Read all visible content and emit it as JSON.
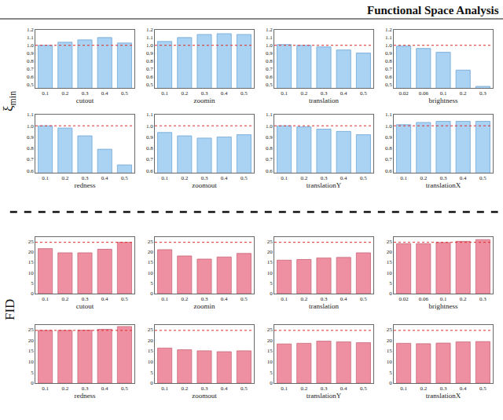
{
  "title": "Functional Space Analysis",
  "groups": [
    {
      "label": "ξ",
      "label_sub": "min"
    },
    {
      "label": "FID"
    }
  ],
  "chart_data": [
    {
      "type": "bar",
      "x_label": "cutout",
      "categories": [
        "0.1",
        "0.2",
        "0.3",
        "0.4",
        "0.5"
      ],
      "values": [
        1.0,
        1.04,
        1.07,
        1.1,
        1.03
      ],
      "color": "#a9d2f3",
      "ylim": [
        0.45,
        1.2
      ],
      "yticks": [
        0.5,
        0.6,
        0.7,
        0.8,
        0.9,
        {
          "value": 1,
          "label": "1.0"
        },
        1.1,
        1.2
      ],
      "reference_line": 1.0,
      "grid": false
    },
    {
      "type": "bar",
      "x_label": "zoomin",
      "categories": [
        "0.1",
        "0.2",
        "0.3",
        "0.4",
        "0.5"
      ],
      "values": [
        1.05,
        1.1,
        1.14,
        1.15,
        1.14
      ],
      "color": "#a9d2f3",
      "ylim": [
        0.45,
        1.2
      ],
      "yticks": [
        0.5,
        0.6,
        0.7,
        0.8,
        0.9,
        {
          "value": 1,
          "label": "1.0"
        },
        1.1,
        1.2
      ],
      "reference_line": 1.0,
      "grid": false
    },
    {
      "type": "bar",
      "x_label": "translation",
      "categories": [
        "0.1",
        "0.2",
        "0.3",
        "0.4",
        "0.5"
      ],
      "values": [
        1.01,
        1.0,
        0.98,
        0.94,
        0.9
      ],
      "color": "#a9d2f3",
      "ylim": [
        0.45,
        1.2
      ],
      "yticks": [
        0.5,
        0.6,
        0.7,
        0.8,
        0.9,
        {
          "value": 1,
          "label": "1.0"
        },
        1.1,
        1.2
      ],
      "reference_line": 1.0,
      "grid": false
    },
    {
      "type": "bar",
      "x_label": "brightness",
      "categories": [
        "0.02",
        "0.06",
        "0.1",
        "0.2",
        "0.3"
      ],
      "values": [
        0.99,
        0.96,
        0.91,
        0.68,
        0.47
      ],
      "color": "#a9d2f3",
      "ylim": [
        0.45,
        1.2
      ],
      "yticks": [
        0.5,
        0.6,
        0.7,
        0.8,
        0.9,
        {
          "value": 1,
          "label": "1.0"
        },
        1.1,
        1.2
      ],
      "reference_line": 1.0,
      "grid": false
    },
    {
      "type": "bar",
      "x_label": "redness",
      "categories": [
        "0.1",
        "0.2",
        "0.3",
        "0.4",
        "0.5"
      ],
      "values": [
        1.0,
        0.98,
        0.91,
        0.79,
        0.65
      ],
      "color": "#a9d2f3",
      "ylim": [
        0.58,
        1.1
      ],
      "yticks": [
        0.6,
        0.7,
        0.8,
        0.9,
        {
          "value": 1,
          "label": "1.0"
        },
        1.1
      ],
      "reference_line": 1.0,
      "grid": false
    },
    {
      "type": "bar",
      "x_label": "zoomout",
      "categories": [
        "0.1",
        "0.2",
        "0.3",
        "0.4",
        "0.5"
      ],
      "values": [
        0.94,
        0.91,
        0.89,
        0.9,
        0.92
      ],
      "color": "#a9d2f3",
      "ylim": [
        0.58,
        1.1
      ],
      "yticks": [
        0.6,
        0.7,
        0.8,
        0.9,
        {
          "value": 1,
          "label": "1.0"
        },
        1.1
      ],
      "reference_line": 1.0,
      "grid": false
    },
    {
      "type": "bar",
      "x_label": "translationY",
      "categories": [
        "0.1",
        "0.2",
        "0.3",
        "0.4",
        "0.5"
      ],
      "values": [
        1.0,
        0.99,
        0.97,
        0.95,
        0.92
      ],
      "color": "#a9d2f3",
      "ylim": [
        0.58,
        1.1
      ],
      "yticks": [
        0.6,
        0.7,
        0.8,
        0.9,
        {
          "value": 1,
          "label": "1.0"
        },
        1.1
      ],
      "reference_line": 1.0,
      "grid": false
    },
    {
      "type": "bar",
      "x_label": "translationX",
      "categories": [
        "0.1",
        "0.2",
        "0.3",
        "0.4",
        "0.5"
      ],
      "values": [
        1.01,
        1.03,
        1.04,
        1.04,
        1.04
      ],
      "color": "#a9d2f3",
      "ylim": [
        0.58,
        1.1
      ],
      "yticks": [
        0.6,
        0.7,
        0.8,
        0.9,
        {
          "value": 1,
          "label": "1.0"
        },
        1.1
      ],
      "reference_line": 1.0,
      "grid": false
    },
    {
      "type": "bar",
      "x_label": "cutout",
      "categories": [
        "0.1",
        "0.2",
        "0.3",
        "0.4",
        "0.5"
      ],
      "values": [
        21.5,
        19.5,
        19.5,
        21.2,
        24.5
      ],
      "color": "#ee90a1",
      "ylim": [
        0,
        27
      ],
      "yticks": [
        0,
        5,
        10,
        15,
        20,
        25
      ],
      "reference_line": 24.5,
      "grid": false
    },
    {
      "type": "bar",
      "x_label": "zoomin",
      "categories": [
        "0.1",
        "0.2",
        "0.3",
        "0.4",
        "0.5"
      ],
      "values": [
        21.0,
        18.0,
        16.5,
        17.5,
        19.2
      ],
      "color": "#ee90a1",
      "ylim": [
        0,
        27
      ],
      "yticks": [
        0,
        5,
        10,
        15,
        20,
        25
      ],
      "reference_line": 24.5,
      "grid": false
    },
    {
      "type": "bar",
      "x_label": "translation",
      "categories": [
        "0.1",
        "0.2",
        "0.3",
        "0.4",
        "0.5"
      ],
      "values": [
        16.0,
        16.3,
        17.0,
        17.3,
        19.5
      ],
      "color": "#ee90a1",
      "ylim": [
        0,
        27
      ],
      "yticks": [
        0,
        5,
        10,
        15,
        20,
        25
      ],
      "reference_line": 24.5,
      "grid": false
    },
    {
      "type": "bar",
      "x_label": "brightness",
      "categories": [
        "0.02",
        "0.06",
        "0.1",
        "0.2",
        "0.3"
      ],
      "values": [
        23.8,
        23.8,
        24.4,
        25.0,
        25.8
      ],
      "color": "#ee90a1",
      "ylim": [
        0,
        27
      ],
      "yticks": [
        0,
        5,
        10,
        15,
        20,
        25
      ],
      "reference_line": 24.5,
      "grid": false
    },
    {
      "type": "bar",
      "x_label": "redness",
      "categories": [
        "0.1",
        "0.2",
        "0.3",
        "0.4",
        "0.5"
      ],
      "values": [
        24.5,
        24.5,
        24.6,
        25.0,
        26.3
      ],
      "color": "#ee90a1",
      "ylim": [
        0,
        27
      ],
      "yticks": [
        0,
        5,
        10,
        15,
        20,
        25
      ],
      "reference_line": 24.5,
      "grid": false
    },
    {
      "type": "bar",
      "x_label": "zoomout",
      "categories": [
        "0.1",
        "0.2",
        "0.3",
        "0.4",
        "0.5"
      ],
      "values": [
        16.3,
        15.5,
        15.0,
        14.6,
        15.0
      ],
      "color": "#ee90a1",
      "ylim": [
        0,
        27
      ],
      "yticks": [
        0,
        5,
        10,
        15,
        20,
        25
      ],
      "reference_line": 24.5,
      "grid": false
    },
    {
      "type": "bar",
      "x_label": "translationY",
      "categories": [
        "0.1",
        "0.2",
        "0.3",
        "0.4",
        "0.5"
      ],
      "values": [
        18.2,
        18.5,
        19.5,
        19.2,
        18.8
      ],
      "color": "#ee90a1",
      "ylim": [
        0,
        27
      ],
      "yticks": [
        0,
        5,
        10,
        15,
        20,
        25
      ],
      "reference_line": 24.5,
      "grid": false
    },
    {
      "type": "bar",
      "x_label": "translationX",
      "categories": [
        "0.1",
        "0.2",
        "0.3",
        "0.4",
        "0.5"
      ],
      "values": [
        18.5,
        18.3,
        18.6,
        19.2,
        19.3
      ],
      "color": "#ee90a1",
      "ylim": [
        0,
        27
      ],
      "yticks": [
        0,
        5,
        10,
        15,
        20,
        25
      ],
      "reference_line": 24.5,
      "grid": false
    }
  ]
}
